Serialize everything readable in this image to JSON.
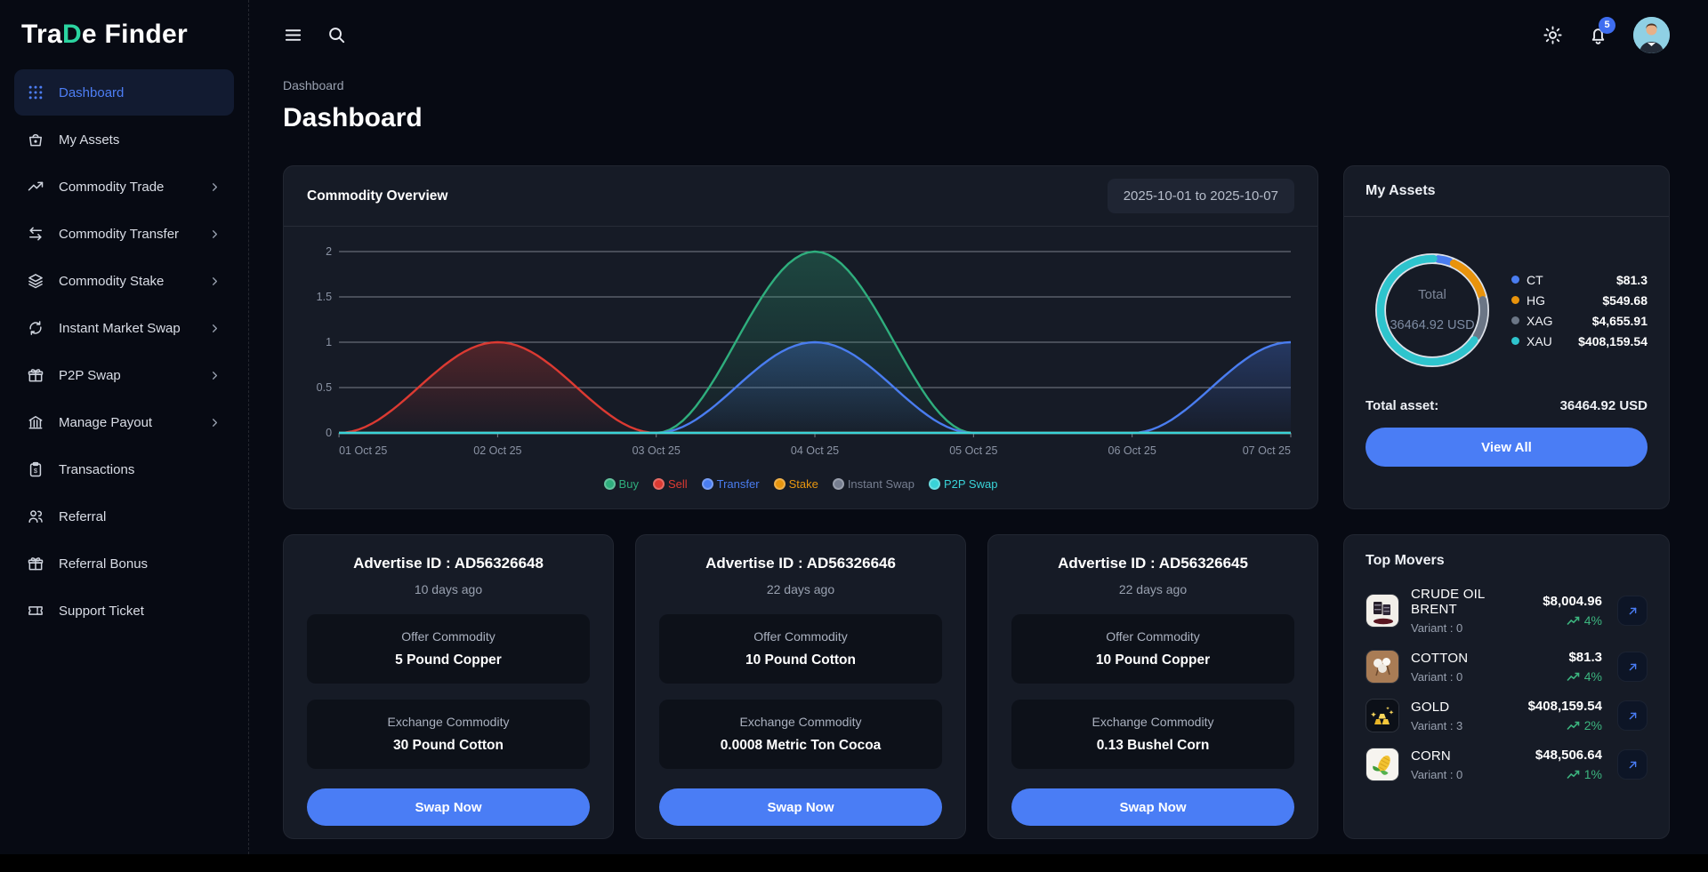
{
  "brand": {
    "prefix": "Tra",
    "d": "D",
    "suffix": "e Finder"
  },
  "topbar": {
    "notification_count": "5"
  },
  "nav": {
    "breadcrumb": "Dashboard",
    "page_title": "Dashboard"
  },
  "sidebar": {
    "items": [
      {
        "label": "Dashboard",
        "active": true,
        "expandable": false
      },
      {
        "label": "My Assets",
        "active": false,
        "expandable": false
      },
      {
        "label": "Commodity Trade",
        "active": false,
        "expandable": true
      },
      {
        "label": "Commodity Transfer",
        "active": false,
        "expandable": true
      },
      {
        "label": "Commodity Stake",
        "active": false,
        "expandable": true
      },
      {
        "label": "Instant Market Swap",
        "active": false,
        "expandable": true
      },
      {
        "label": "P2P Swap",
        "active": false,
        "expandable": true
      },
      {
        "label": "Manage Payout",
        "active": false,
        "expandable": true
      },
      {
        "label": "Transactions",
        "active": false,
        "expandable": false
      },
      {
        "label": "Referral",
        "active": false,
        "expandable": false
      },
      {
        "label": "Referral Bonus",
        "active": false,
        "expandable": false
      },
      {
        "label": "Support Ticket",
        "active": false,
        "expandable": false
      }
    ]
  },
  "overview": {
    "title": "Commodity Overview",
    "date_range": "2025-10-01 to 2025-10-07"
  },
  "chart_data": {
    "type": "area",
    "x": [
      "01 Oct 25",
      "02 Oct 25",
      "03 Oct 25",
      "04 Oct 25",
      "05 Oct 25",
      "06 Oct 25",
      "07 Oct 25"
    ],
    "yticks": [
      0,
      0.5,
      1,
      1.5,
      2
    ],
    "ylim": [
      0,
      2
    ],
    "grid": true,
    "legend_position": "bottom",
    "series": [
      {
        "name": "Buy",
        "color": "#2fae7d",
        "values": [
          0,
          0,
          0,
          2,
          0,
          0,
          0
        ]
      },
      {
        "name": "Sell",
        "color": "#dc3a32",
        "values": [
          0,
          1,
          0,
          0,
          0,
          0,
          0
        ]
      },
      {
        "name": "Transfer",
        "color": "#4a7df0",
        "values": [
          0,
          0,
          0,
          1,
          0,
          0,
          1
        ]
      },
      {
        "name": "Stake",
        "color": "#e8960f",
        "values": [
          0,
          0,
          0,
          0,
          0,
          0,
          0
        ]
      },
      {
        "name": "Instant Swap",
        "color": "#767e90",
        "values": [
          0,
          0,
          0,
          0,
          0,
          0,
          0
        ]
      },
      {
        "name": "P2P Swap",
        "color": "#39d3d8",
        "values": [
          0,
          0,
          0,
          0,
          0,
          0,
          0
        ]
      }
    ]
  },
  "my_assets": {
    "title": "My Assets",
    "center_label": "Total",
    "center_value": "36464.92 USD",
    "donut": {
      "segments": [
        {
          "code": "CT",
          "color": "#4a7df0",
          "value": "$81.3",
          "percent": 5
        },
        {
          "code": "HG",
          "color": "#e8930c",
          "value": "$549.68",
          "percent": 15
        },
        {
          "code": "XAG",
          "color": "#6b7686",
          "value": "$4,655.91",
          "percent": 13
        },
        {
          "code": "XAU",
          "color": "#2ec4cd",
          "value": "$408,159.54",
          "percent": 67
        }
      ]
    },
    "total_label": "Total asset:",
    "total_value": "36464.92 USD",
    "view_all_label": "View All"
  },
  "ads": [
    {
      "id_label": "Advertise ID : AD56326648",
      "age": "10 days ago",
      "offer_label": "Offer Commodity",
      "offer_value": "5 Pound Copper",
      "exchange_label": "Exchange Commodity",
      "exchange_value": "30 Pound Cotton",
      "cta": "Swap Now"
    },
    {
      "id_label": "Advertise ID : AD56326646",
      "age": "22 days ago",
      "offer_label": "Offer Commodity",
      "offer_value": "10 Pound Cotton",
      "exchange_label": "Exchange Commodity",
      "exchange_value": "0.0008 Metric Ton Cocoa",
      "cta": "Swap Now"
    },
    {
      "id_label": "Advertise ID : AD56326645",
      "age": "22 days ago",
      "offer_label": "Offer Commodity",
      "offer_value": "10 Pound Copper",
      "exchange_label": "Exchange Commodity",
      "exchange_value": "0.13 Bushel Corn",
      "cta": "Swap Now"
    }
  ],
  "top_movers": {
    "title": "Top Movers",
    "rows": [
      {
        "name": "CRUDE OIL BRENT",
        "variant": "Variant : 0",
        "price": "$8,004.96",
        "change": "4%"
      },
      {
        "name": "COTTON",
        "variant": "Variant : 0",
        "price": "$81.3",
        "change": "4%"
      },
      {
        "name": "GOLD",
        "variant": "Variant : 3",
        "price": "$408,159.54",
        "change": "2%"
      },
      {
        "name": "CORN",
        "variant": "Variant : 0",
        "price": "$48,506.64",
        "change": "1%"
      }
    ]
  },
  "colors": {
    "accent": "#4a7df5",
    "positive": "#3cb57f",
    "background": "#070a13",
    "card": "#161b26"
  }
}
